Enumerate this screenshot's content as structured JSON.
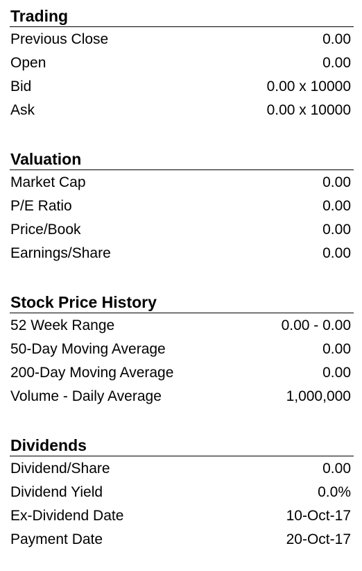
{
  "sections": [
    {
      "title": "Trading",
      "rows": [
        {
          "label": "Previous Close",
          "value": "0.00"
        },
        {
          "label": "Open",
          "value": "0.00"
        },
        {
          "label": "Bid",
          "value": "0.00 x 10000"
        },
        {
          "label": "Ask",
          "value": "0.00 x 10000"
        }
      ]
    },
    {
      "title": "Valuation",
      "rows": [
        {
          "label": "Market Cap",
          "value": "0.00"
        },
        {
          "label": "P/E Ratio",
          "value": "0.00"
        },
        {
          "label": "Price/Book",
          "value": "0.00"
        },
        {
          "label": "Earnings/Share",
          "value": "0.00"
        }
      ]
    },
    {
      "title": "Stock Price History",
      "rows": [
        {
          "label": "52 Week Range",
          "value": "0.00 - 0.00"
        },
        {
          "label": "50-Day Moving Average",
          "value": "0.00"
        },
        {
          "label": "200-Day Moving Average",
          "value": "0.00"
        },
        {
          "label": "Volume - Daily Average",
          "value": "1,000,000"
        }
      ]
    },
    {
      "title": "Dividends",
      "rows": [
        {
          "label": "Dividend/Share",
          "value": "0.00"
        },
        {
          "label": "Dividend Yield",
          "value": "0.0%"
        },
        {
          "label": "Ex-Dividend Date",
          "value": "10-Oct-17"
        },
        {
          "label": "Payment Date",
          "value": "20-Oct-17"
        }
      ]
    }
  ]
}
